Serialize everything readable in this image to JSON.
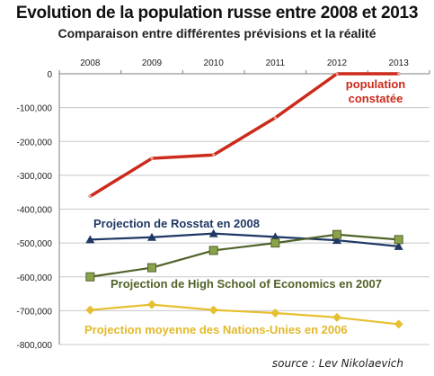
{
  "title": "Evolution de la population russe entre 2008 et 2013",
  "subtitle": "Comparaison entre différentes prévisions et la réalité",
  "source": "source : Lev Nikolaevich",
  "chart_data": {
    "type": "line",
    "x": [
      "2008",
      "2009",
      "2010",
      "2011",
      "2012",
      "2013"
    ],
    "ylim": [
      -800000,
      0
    ],
    "y_ticks": [
      0,
      -100000,
      -200000,
      -300000,
      -400000,
      -500000,
      -600000,
      -700000,
      -800000
    ],
    "y_tick_labels": [
      "0",
      "-100,000",
      "-200,000",
      "-300,000",
      "-400,000",
      "-500,000",
      "-600,000",
      "-700,000",
      "-800,000"
    ],
    "grid": "horizontal",
    "x_axis_position": "top",
    "series": [
      {
        "name": "population constatée",
        "label_lines": [
          "population",
          "constatée"
        ],
        "color": "#cc2a1a",
        "marker": "none",
        "values": [
          -362000,
          -250000,
          -240000,
          -130000,
          0,
          0
        ]
      },
      {
        "name": "Projection de Rosstat en 2008",
        "color": "#1f3864",
        "marker": "triangle",
        "values": [
          -490000,
          -483000,
          -472000,
          -482000,
          -492000,
          -510000
        ]
      },
      {
        "name": "Projection de High School of Economics en 2007",
        "color": "#4f6228",
        "marker": "square",
        "values": [
          -600000,
          -573000,
          -522000,
          -500000,
          -475000,
          -490000
        ]
      },
      {
        "name": "Projection moyenne des Nations-Unies en 2006",
        "color": "#e6c030",
        "marker": "diamond",
        "values": [
          -698000,
          -682000,
          -698000,
          -707000,
          -720000,
          -740000
        ]
      }
    ]
  }
}
